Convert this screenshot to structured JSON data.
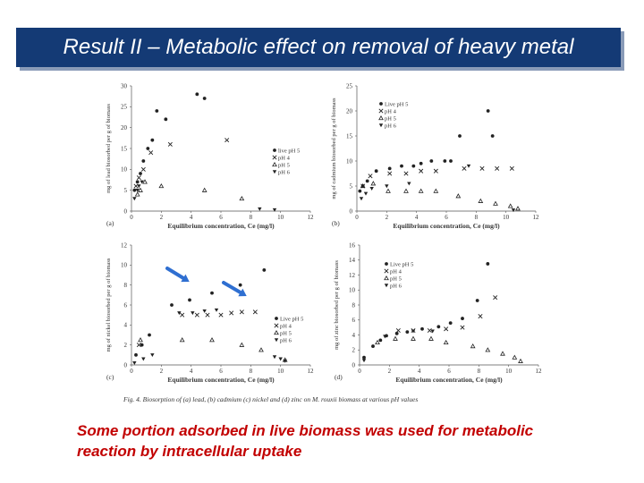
{
  "slide": {
    "title": "Result II – Metabolic effect on removal of heavy metal",
    "conclusion_line1": "Some portion adsorbed in live biomass was used for metabolic",
    "conclusion_line2": "reaction by intracellular uptake"
  },
  "figure_caption": "Fig. 4.  Biosorption of (a) lead, (b) cadmium (c) nickel and (d) zinc on M. rouxii biomass at various pH values",
  "colors": {
    "title_bg": "#143a75",
    "title_text": "#ffffff",
    "conclusion_text": "#c20000",
    "arrow": "#2f6fd1",
    "markers": "#222222"
  },
  "chart_data": [
    {
      "type": "scatter",
      "panel_label": "(a)",
      "xlabel": "Equilibrium concentration, Ce (mg/l)",
      "ylabel": "mg of lead biosorbed per g of biomass",
      "xlim": [
        0,
        12
      ],
      "ylim": [
        0,
        30
      ],
      "xticks": [
        "0",
        "2",
        "4",
        "6",
        "8",
        "10",
        "12"
      ],
      "yticks": [
        "0",
        "5",
        "10",
        "15",
        "20",
        "25",
        "30"
      ],
      "legend_position": "right",
      "series": [
        {
          "name": "live pH 5",
          "marker": "circle",
          "points": [
            [
              0.2,
              5
            ],
            [
              0.4,
              7
            ],
            [
              0.6,
              9
            ],
            [
              0.8,
              12
            ],
            [
              1.1,
              15
            ],
            [
              1.4,
              17
            ],
            [
              1.7,
              24
            ],
            [
              2.3,
              22
            ],
            [
              4.4,
              28
            ],
            [
              4.9,
              27
            ]
          ]
        },
        {
          "name": "pH 4",
          "marker": "x",
          "points": [
            [
              0.3,
              6
            ],
            [
              0.5,
              8
            ],
            [
              0.8,
              10
            ],
            [
              1.3,
              14
            ],
            [
              2.6,
              16
            ],
            [
              6.4,
              17
            ]
          ]
        },
        {
          "name": "pH 5",
          "marker": "triangle",
          "points": [
            [
              0.4,
              4
            ],
            [
              0.6,
              5
            ],
            [
              0.9,
              7
            ],
            [
              2.0,
              6
            ],
            [
              4.9,
              5
            ],
            [
              7.4,
              3
            ]
          ]
        },
        {
          "name": "pH 6",
          "marker": "triangle-down",
          "points": [
            [
              0.2,
              3
            ],
            [
              0.4,
              5
            ],
            [
              0.5,
              6
            ],
            [
              0.7,
              7
            ],
            [
              8.6,
              0.5
            ],
            [
              9.6,
              0.3
            ]
          ]
        }
      ]
    },
    {
      "type": "scatter",
      "panel_label": "(b)",
      "xlabel": "Equilibrium concentration, Ce (mg/l)",
      "ylabel": "mg of cadmium biosorbed per g of biomass",
      "xlim": [
        0,
        12
      ],
      "ylim": [
        0,
        25
      ],
      "xticks": [
        "0",
        "2",
        "4",
        "6",
        "8",
        "10",
        "12"
      ],
      "yticks": [
        "0",
        "5",
        "10",
        "15",
        "20",
        "25"
      ],
      "legend_position": "top-right",
      "series": [
        {
          "name": "Live pH 5",
          "marker": "circle",
          "points": [
            [
              0.2,
              4
            ],
            [
              0.4,
              5
            ],
            [
              0.7,
              6
            ],
            [
              1.3,
              8
            ],
            [
              2.2,
              8.5
            ],
            [
              3.0,
              9
            ],
            [
              3.8,
              9
            ],
            [
              4.3,
              9.5
            ],
            [
              5.0,
              10
            ],
            [
              5.9,
              10
            ],
            [
              6.3,
              10
            ],
            [
              6.9,
              15
            ],
            [
              8.8,
              20
            ],
            [
              9.1,
              15
            ]
          ]
        },
        {
          "name": "pH 4",
          "marker": "x",
          "points": [
            [
              0.4,
              5
            ],
            [
              0.9,
              7
            ],
            [
              2.2,
              7.5
            ],
            [
              3.3,
              7.5
            ],
            [
              4.3,
              8
            ],
            [
              5.3,
              8
            ],
            [
              7.2,
              8.5
            ],
            [
              8.4,
              8.5
            ],
            [
              9.4,
              8.5
            ],
            [
              10.4,
              8.5
            ]
          ]
        },
        {
          "name": "pH 5",
          "marker": "triangle",
          "points": [
            [
              0.4,
              5
            ],
            [
              1.1,
              5.5
            ],
            [
              2.1,
              4
            ],
            [
              3.3,
              4
            ],
            [
              4.3,
              4
            ],
            [
              5.3,
              4
            ],
            [
              6.8,
              3
            ],
            [
              8.3,
              2
            ],
            [
              9.3,
              1.5
            ],
            [
              10.3,
              1
            ],
            [
              10.8,
              0.5
            ]
          ]
        },
        {
          "name": "pH 6",
          "marker": "triangle-down",
          "points": [
            [
              0.3,
              2.5
            ],
            [
              0.6,
              3.5
            ],
            [
              1.0,
              4.5
            ],
            [
              2.0,
              5
            ],
            [
              3.5,
              5.5
            ],
            [
              7.5,
              9
            ],
            [
              10.5,
              0.2
            ]
          ]
        }
      ]
    },
    {
      "type": "scatter",
      "panel_label": "(c)",
      "xlabel": "Equilibrium concentration, Ce (mg/l)",
      "ylabel": "mg of nickel biosorbed per g of biomass",
      "xlim": [
        0,
        12
      ],
      "ylim": [
        0,
        12
      ],
      "xticks": [
        "0",
        "2",
        "4",
        "6",
        "8",
        "10",
        "12"
      ],
      "yticks": [
        "0",
        "2",
        "4",
        "6",
        "8",
        "10",
        "12"
      ],
      "legend_position": "right",
      "series": [
        {
          "name": "Live pH 5",
          "marker": "circle",
          "points": [
            [
              0.3,
              1
            ],
            [
              0.7,
              2
            ],
            [
              1.2,
              3
            ],
            [
              2.7,
              6
            ],
            [
              3.9,
              6.5
            ],
            [
              5.4,
              7.2
            ],
            [
              7.3,
              8
            ],
            [
              8.9,
              9.5
            ]
          ]
        },
        {
          "name": "pH 4",
          "marker": "x",
          "points": [
            [
              0.5,
              2
            ],
            [
              3.4,
              5
            ],
            [
              4.4,
              5
            ],
            [
              5.1,
              5
            ],
            [
              6.0,
              5
            ],
            [
              6.7,
              5.2
            ],
            [
              7.4,
              5.3
            ],
            [
              8.3,
              5.3
            ]
          ]
        },
        {
          "name": "pH 5",
          "marker": "triangle",
          "points": [
            [
              0.6,
              2.5
            ],
            [
              3.4,
              2.5
            ],
            [
              5.4,
              2.5
            ],
            [
              7.4,
              2
            ],
            [
              8.7,
              1.5
            ],
            [
              10.3,
              0.5
            ]
          ]
        },
        {
          "name": "pH 6",
          "marker": "triangle-down",
          "points": [
            [
              0.2,
              0.2
            ],
            [
              0.8,
              0.6
            ],
            [
              1.4,
              1.0
            ],
            [
              3.2,
              5.2
            ],
            [
              4.1,
              5.2
            ],
            [
              4.9,
              5.4
            ],
            [
              5.7,
              5.5
            ],
            [
              9.6,
              0.8
            ],
            [
              10.0,
              0.6
            ],
            [
              10.3,
              0.4
            ]
          ]
        }
      ]
    },
    {
      "type": "scatter",
      "panel_label": "(d)",
      "xlabel": "Equilibrium concentration, Ce (mg/l)",
      "ylabel": "mg of zinc biosorbed per g of biomass",
      "xlim": [
        0,
        12
      ],
      "ylim": [
        0,
        16
      ],
      "xticks": [
        "0",
        "2",
        "4",
        "6",
        "8",
        "10",
        "12"
      ],
      "yticks": [
        "0",
        "2",
        "4",
        "6",
        "8",
        "10",
        "12",
        "14",
        "16"
      ],
      "legend_position": "top-left",
      "series": [
        {
          "name": "Live pH 5",
          "marker": "circle",
          "points": [
            [
              0.3,
              1
            ],
            [
              0.9,
              2.5
            ],
            [
              1.4,
              3.3
            ],
            [
              1.8,
              3.9
            ],
            [
              2.5,
              4.2
            ],
            [
              3.2,
              4.4
            ],
            [
              4.2,
              4.8
            ],
            [
              5.3,
              5.1
            ],
            [
              6.1,
              5.6
            ],
            [
              6.9,
              6.2
            ],
            [
              7.9,
              8.6
            ],
            [
              8.6,
              13.5
            ]
          ]
        },
        {
          "name": "pH 4",
          "marker": "x",
          "points": [
            [
              2.6,
              4.6
            ],
            [
              3.6,
              4.6
            ],
            [
              4.7,
              4.6
            ],
            [
              5.8,
              4.8
            ],
            [
              6.9,
              5
            ],
            [
              8.1,
              6.5
            ],
            [
              9.1,
              9
            ]
          ]
        },
        {
          "name": "pH 5",
          "marker": "triangle",
          "points": [
            [
              1.2,
              3
            ],
            [
              2.4,
              3.5
            ],
            [
              3.6,
              3.5
            ],
            [
              4.8,
              3.5
            ],
            [
              5.8,
              3
            ],
            [
              7.6,
              2.5
            ],
            [
              8.6,
              2
            ],
            [
              9.6,
              1.5
            ],
            [
              10.4,
              1
            ],
            [
              10.8,
              0.5
            ]
          ]
        },
        {
          "name": "pH 6",
          "marker": "triangle-down",
          "points": [
            [
              0.3,
              0.6
            ],
            [
              1.7,
              3.8
            ],
            [
              3.6,
              4.5
            ],
            [
              4.9,
              4.5
            ]
          ]
        }
      ]
    }
  ]
}
